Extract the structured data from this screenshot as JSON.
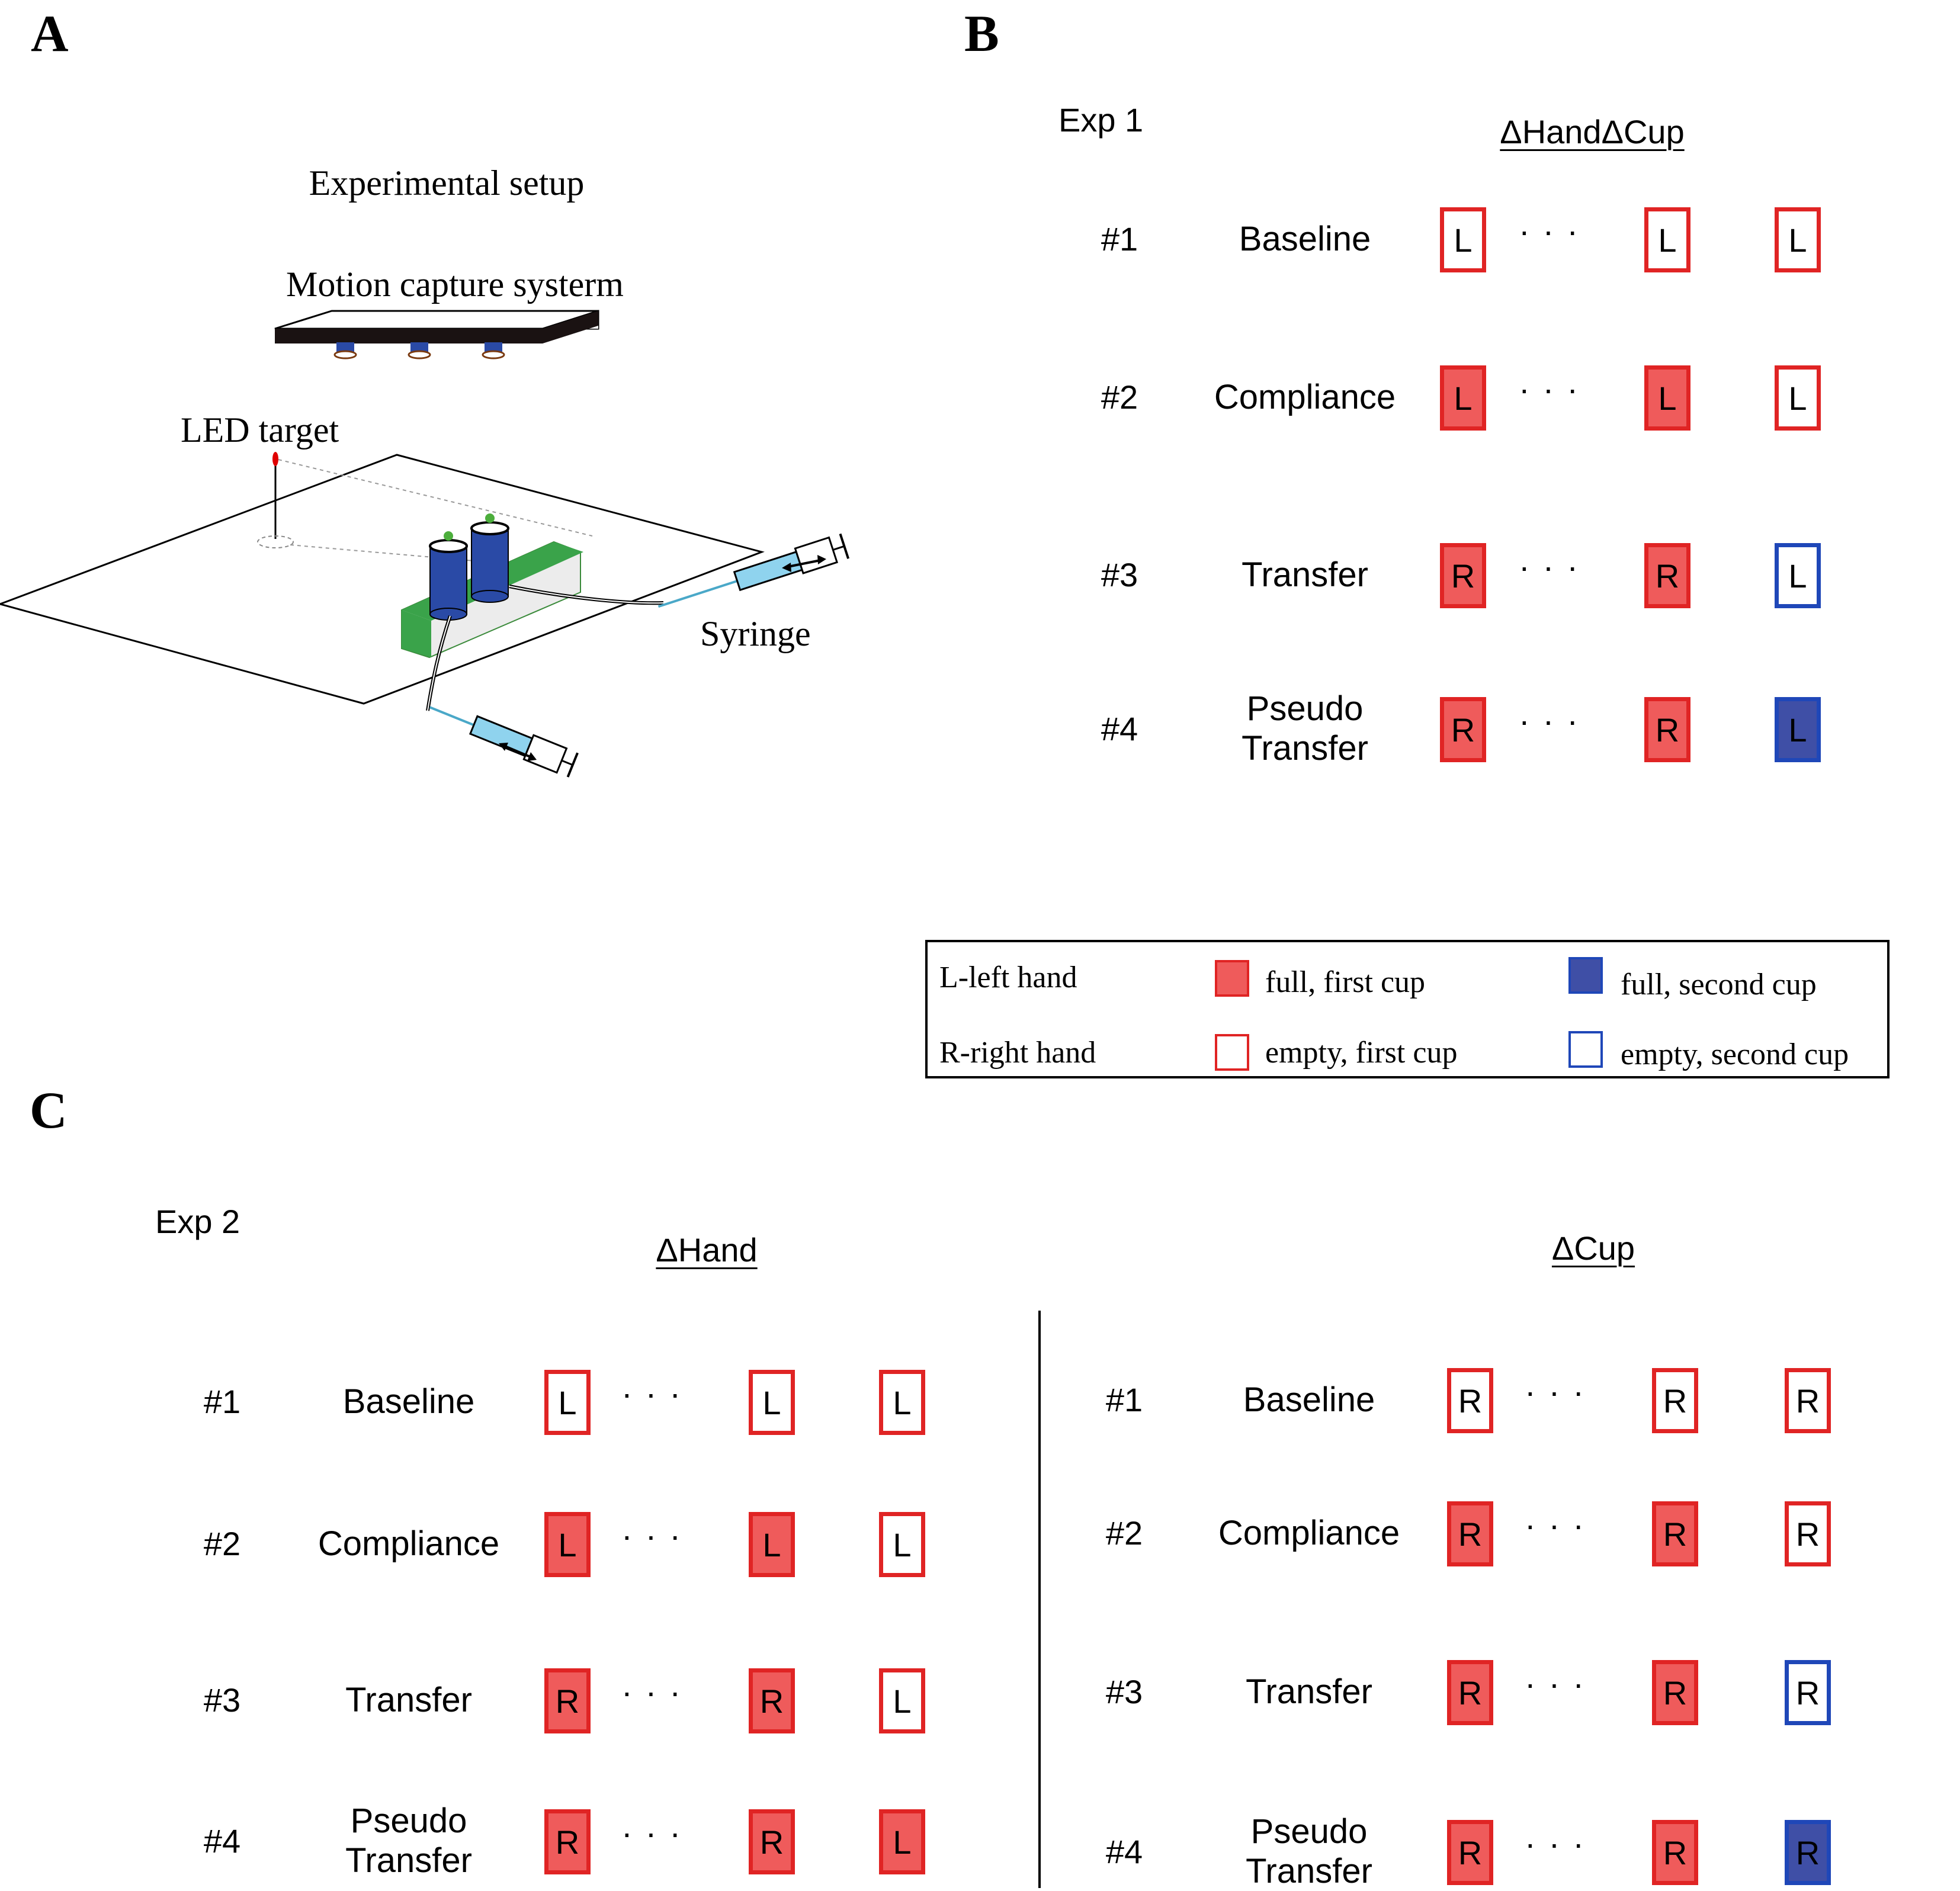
{
  "panels": {
    "a": "A",
    "b": "B",
    "c": "C"
  },
  "setup": {
    "title": "Experimental setup",
    "motion_label": "Motion capture systerm",
    "led_label": "LED target",
    "syringe_label": "Syringe"
  },
  "exp1": {
    "label": "Exp 1",
    "header": "ΔHandΔCup",
    "rows": [
      {
        "num": "#1",
        "cond": "Baseline",
        "boxes": [
          {
            "letter": "L",
            "style": "empty-red"
          },
          {
            "letter": "L",
            "style": "empty-red"
          },
          {
            "letter": "L",
            "style": "empty-red"
          }
        ]
      },
      {
        "num": "#2",
        "cond": "Compliance",
        "boxes": [
          {
            "letter": "L",
            "style": "full-red"
          },
          {
            "letter": "L",
            "style": "full-red"
          },
          {
            "letter": "L",
            "style": "empty-red"
          }
        ]
      },
      {
        "num": "#3",
        "cond": "Transfer",
        "boxes": [
          {
            "letter": "R",
            "style": "full-red"
          },
          {
            "letter": "R",
            "style": "full-red"
          },
          {
            "letter": "L",
            "style": "empty-blue"
          }
        ]
      },
      {
        "num": "#4",
        "cond": "Pseudo\nTransfer",
        "boxes": [
          {
            "letter": "R",
            "style": "full-red"
          },
          {
            "letter": "R",
            "style": "full-red"
          },
          {
            "letter": "L",
            "style": "full-blue"
          }
        ]
      }
    ]
  },
  "legend": {
    "left_hand": "L-left hand",
    "right_hand": "R-right hand",
    "full_first": "full, first cup",
    "empty_first": "empty, first cup",
    "full_second": "full, second cup",
    "empty_second": "empty, second cup",
    "colors": {
      "red_fill": "#ef5b5b",
      "red_border": "#e02424",
      "blue_fill": "#3f4fa6",
      "blue_border": "#1f47b8"
    }
  },
  "exp2": {
    "label": "Exp 2",
    "hand_header": "ΔHand",
    "cup_header": "ΔCup",
    "hand_rows": [
      {
        "num": "#1",
        "cond": "Baseline",
        "boxes": [
          {
            "letter": "L",
            "style": "empty-red"
          },
          {
            "letter": "L",
            "style": "empty-red"
          },
          {
            "letter": "L",
            "style": "empty-red"
          }
        ]
      },
      {
        "num": "#2",
        "cond": "Compliance",
        "boxes": [
          {
            "letter": "L",
            "style": "full-red"
          },
          {
            "letter": "L",
            "style": "full-red"
          },
          {
            "letter": "L",
            "style": "empty-red"
          }
        ]
      },
      {
        "num": "#3",
        "cond": "Transfer",
        "boxes": [
          {
            "letter": "R",
            "style": "full-red"
          },
          {
            "letter": "R",
            "style": "full-red"
          },
          {
            "letter": "L",
            "style": "empty-red"
          }
        ]
      },
      {
        "num": "#4",
        "cond": "Pseudo\nTransfer",
        "boxes": [
          {
            "letter": "R",
            "style": "full-red"
          },
          {
            "letter": "R",
            "style": "full-red"
          },
          {
            "letter": "L",
            "style": "full-red"
          }
        ]
      }
    ],
    "cup_rows": [
      {
        "num": "#1",
        "cond": "Baseline",
        "boxes": [
          {
            "letter": "R",
            "style": "empty-red"
          },
          {
            "letter": "R",
            "style": "empty-red"
          },
          {
            "letter": "R",
            "style": "empty-red"
          }
        ]
      },
      {
        "num": "#2",
        "cond": "Compliance",
        "boxes": [
          {
            "letter": "R",
            "style": "full-red"
          },
          {
            "letter": "R",
            "style": "full-red"
          },
          {
            "letter": "R",
            "style": "empty-red"
          }
        ]
      },
      {
        "num": "#3",
        "cond": "Transfer",
        "boxes": [
          {
            "letter": "R",
            "style": "full-red"
          },
          {
            "letter": "R",
            "style": "full-red"
          },
          {
            "letter": "R",
            "style": "empty-blue"
          }
        ]
      },
      {
        "num": "#4",
        "cond": "Pseudo\nTransfer",
        "boxes": [
          {
            "letter": "R",
            "style": "full-red"
          },
          {
            "letter": "R",
            "style": "full-red"
          },
          {
            "letter": "R",
            "style": "full-blue"
          }
        ]
      }
    ]
  }
}
